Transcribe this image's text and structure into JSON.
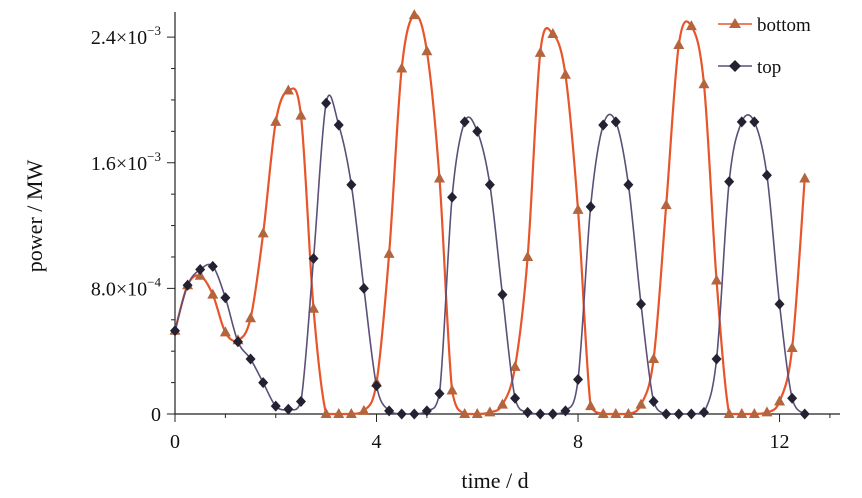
{
  "chart_data": {
    "type": "line",
    "xlabel": "time / d",
    "ylabel": "power / MW",
    "xlim": [
      0,
      13.2
    ],
    "ylim": [
      0,
      0.00256
    ],
    "x_ticks": [
      0,
      4,
      8,
      12
    ],
    "x_tick_labels": [
      "0",
      "4",
      "8",
      "12"
    ],
    "y_ticks": [
      0,
      0.0008,
      0.0016,
      0.0024
    ],
    "y_tick_labels": [
      {
        "mantissa": "0",
        "exponent": ""
      },
      {
        "mantissa": "8.0×10",
        "exponent": "−4"
      },
      {
        "mantissa": "1.6×10",
        "exponent": "−3"
      },
      {
        "mantissa": "2.4×10",
        "exponent": "−3"
      }
    ],
    "grid": false,
    "legend_position": "top-right",
    "series": [
      {
        "name": "bottom",
        "color": "#e8552a",
        "marker_color": "#b5653d",
        "marker": "triangle",
        "x": [
          0.0,
          0.25,
          0.5,
          0.75,
          1.0,
          1.25,
          1.5,
          1.75,
          2.0,
          2.25,
          2.5,
          2.75,
          3.0,
          3.25,
          3.5,
          3.75,
          4.0,
          4.25,
          4.5,
          4.75,
          5.0,
          5.25,
          5.5,
          5.75,
          6.0,
          6.25,
          6.5,
          6.75,
          7.0,
          7.25,
          7.5,
          7.75,
          8.0,
          8.25,
          8.5,
          8.75,
          9.0,
          9.25,
          9.5,
          9.75,
          10.0,
          10.25,
          10.5,
          10.75,
          11.0,
          11.25,
          11.5,
          11.75,
          12.0,
          12.25,
          12.5
        ],
        "y": [
          0.00053,
          0.00082,
          0.00088,
          0.00076,
          0.00052,
          0.00047,
          0.00061,
          0.00115,
          0.00186,
          0.00206,
          0.0019,
          0.00067,
          0.0,
          0.0,
          0.0,
          2e-05,
          0.0002,
          0.00102,
          0.0022,
          0.00254,
          0.00231,
          0.0015,
          0.00015,
          0.0,
          0.0,
          1e-05,
          6e-05,
          0.0003,
          0.001,
          0.0023,
          0.00242,
          0.00216,
          0.0013,
          5e-05,
          0.0,
          0.0,
          0.0,
          6e-05,
          0.00035,
          0.00133,
          0.00235,
          0.00247,
          0.0021,
          0.00085,
          0.0,
          0.0,
          0.0,
          1e-05,
          8e-05,
          0.00042,
          0.0015
        ]
      },
      {
        "name": "top",
        "color": "#5c4f78",
        "marker_color": "#222233",
        "marker": "diamond",
        "x": [
          0.0,
          0.25,
          0.5,
          0.75,
          1.0,
          1.25,
          1.5,
          1.75,
          2.0,
          2.25,
          2.5,
          2.75,
          3.0,
          3.25,
          3.5,
          3.75,
          4.0,
          4.25,
          4.5,
          4.75,
          5.0,
          5.25,
          5.5,
          5.75,
          6.0,
          6.25,
          6.5,
          6.75,
          7.0,
          7.25,
          7.5,
          7.75,
          8.0,
          8.25,
          8.5,
          8.75,
          9.0,
          9.25,
          9.5,
          9.75,
          10.0,
          10.25,
          10.5,
          10.75,
          11.0,
          11.25,
          11.5,
          11.75,
          12.0,
          12.25,
          12.5
        ],
        "y": [
          0.00053,
          0.00082,
          0.00092,
          0.00094,
          0.00074,
          0.00046,
          0.00035,
          0.0002,
          5e-05,
          3e-05,
          8e-05,
          0.00099,
          0.00198,
          0.00184,
          0.00146,
          0.0008,
          0.00018,
          2e-05,
          0.0,
          0.0,
          2e-05,
          0.00013,
          0.00138,
          0.00186,
          0.0018,
          0.00146,
          0.00076,
          0.0001,
          1e-05,
          0.0,
          0.0,
          2e-05,
          0.00022,
          0.00132,
          0.00184,
          0.00186,
          0.00146,
          0.0007,
          8e-05,
          0.0,
          0.0,
          0.0,
          1e-05,
          0.00035,
          0.00148,
          0.00186,
          0.00186,
          0.00152,
          0.0007,
          0.0001,
          0.0
        ]
      }
    ]
  }
}
